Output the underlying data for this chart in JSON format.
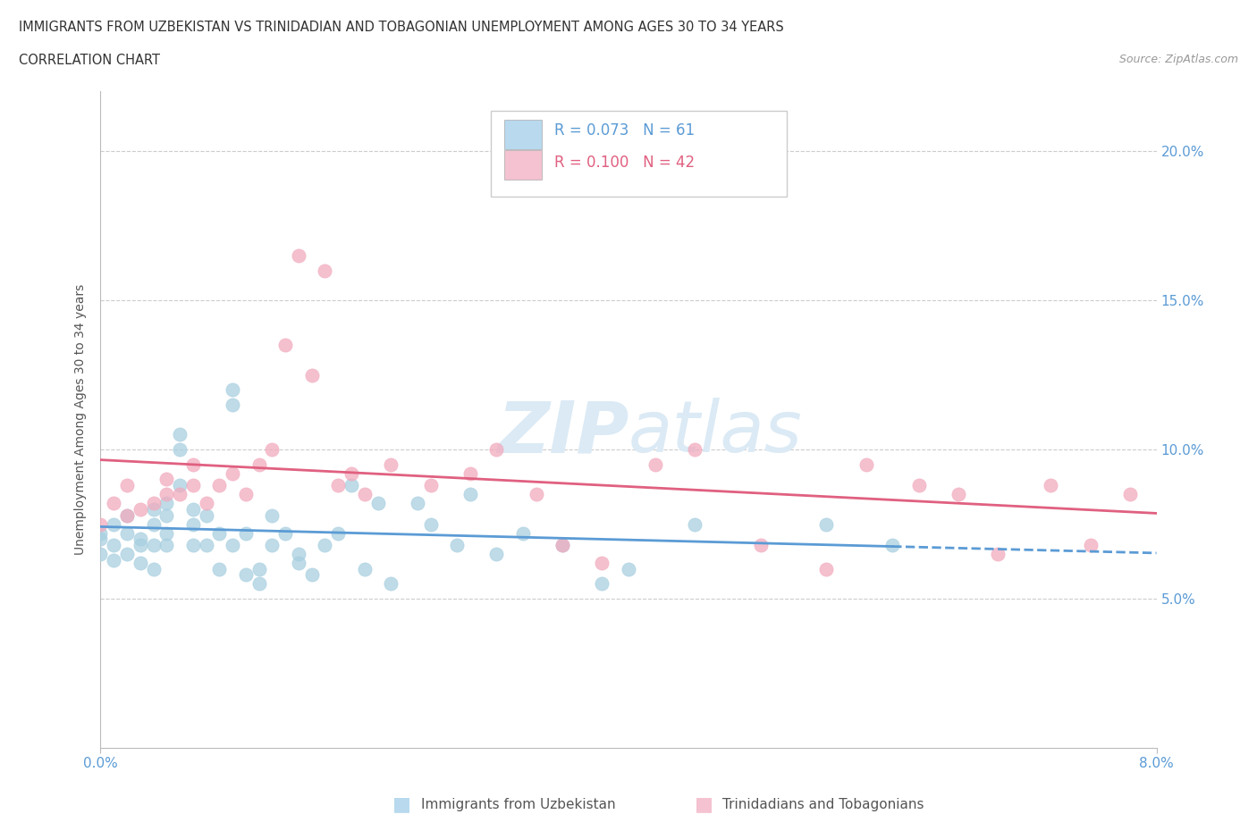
{
  "title_line1": "IMMIGRANTS FROM UZBEKISTAN VS TRINIDADIAN AND TOBAGONIAN UNEMPLOYMENT AMONG AGES 30 TO 34 YEARS",
  "title_line2": "CORRELATION CHART",
  "source": "Source: ZipAtlas.com",
  "ylabel": "Unemployment Among Ages 30 to 34 years",
  "xlim": [
    0.0,
    0.08
  ],
  "ylim": [
    0.0,
    0.22
  ],
  "yticks": [
    0.05,
    0.1,
    0.15,
    0.2
  ],
  "ytick_labels": [
    "5.0%",
    "10.0%",
    "15.0%",
    "20.0%"
  ],
  "xticks": [
    0.0,
    0.08
  ],
  "xtick_labels": [
    "0.0%",
    "8.0%"
  ],
  "color_uzbek": "#a8cfe0",
  "color_trini": "#f2abbe",
  "line_color_uzbek": "#5b9bd5",
  "line_color_trini": "#e06080",
  "R_uzbek": 0.073,
  "N_uzbek": 61,
  "R_trini": 0.1,
  "N_trini": 42,
  "uzbek_x": [
    0.0,
    0.0,
    0.0,
    0.001,
    0.001,
    0.001,
    0.002,
    0.002,
    0.002,
    0.003,
    0.003,
    0.003,
    0.004,
    0.004,
    0.004,
    0.004,
    0.005,
    0.005,
    0.005,
    0.005,
    0.006,
    0.006,
    0.006,
    0.007,
    0.007,
    0.007,
    0.008,
    0.008,
    0.009,
    0.009,
    0.01,
    0.01,
    0.01,
    0.011,
    0.011,
    0.012,
    0.012,
    0.013,
    0.013,
    0.014,
    0.015,
    0.015,
    0.016,
    0.017,
    0.018,
    0.019,
    0.02,
    0.021,
    0.022,
    0.024,
    0.025,
    0.027,
    0.028,
    0.03,
    0.032,
    0.035,
    0.038,
    0.04,
    0.045,
    0.055,
    0.06
  ],
  "uzbek_y": [
    0.07,
    0.072,
    0.065,
    0.068,
    0.075,
    0.063,
    0.072,
    0.078,
    0.065,
    0.07,
    0.068,
    0.062,
    0.075,
    0.08,
    0.068,
    0.06,
    0.078,
    0.082,
    0.072,
    0.068,
    0.1,
    0.105,
    0.088,
    0.08,
    0.075,
    0.068,
    0.078,
    0.068,
    0.072,
    0.06,
    0.115,
    0.12,
    0.068,
    0.072,
    0.058,
    0.06,
    0.055,
    0.078,
    0.068,
    0.072,
    0.065,
    0.062,
    0.058,
    0.068,
    0.072,
    0.088,
    0.06,
    0.082,
    0.055,
    0.082,
    0.075,
    0.068,
    0.085,
    0.065,
    0.072,
    0.068,
    0.055,
    0.06,
    0.075,
    0.075,
    0.068
  ],
  "trini_x": [
    0.0,
    0.001,
    0.002,
    0.002,
    0.003,
    0.004,
    0.005,
    0.005,
    0.006,
    0.007,
    0.007,
    0.008,
    0.009,
    0.01,
    0.011,
    0.012,
    0.013,
    0.014,
    0.015,
    0.016,
    0.017,
    0.018,
    0.019,
    0.02,
    0.022,
    0.025,
    0.028,
    0.03,
    0.033,
    0.035,
    0.038,
    0.042,
    0.045,
    0.05,
    0.055,
    0.058,
    0.062,
    0.065,
    0.068,
    0.072,
    0.075,
    0.078
  ],
  "trini_y": [
    0.075,
    0.082,
    0.078,
    0.088,
    0.08,
    0.082,
    0.085,
    0.09,
    0.085,
    0.088,
    0.095,
    0.082,
    0.088,
    0.092,
    0.085,
    0.095,
    0.1,
    0.135,
    0.165,
    0.125,
    0.16,
    0.088,
    0.092,
    0.085,
    0.095,
    0.088,
    0.092,
    0.1,
    0.085,
    0.068,
    0.062,
    0.095,
    0.1,
    0.068,
    0.06,
    0.095,
    0.088,
    0.085,
    0.065,
    0.088,
    0.068,
    0.085
  ],
  "background_color": "#ffffff",
  "grid_color": "#cccccc",
  "tick_color": "#5b9bd5",
  "watermark_color": "#dbeaf5",
  "legend_box_color_uzbek": "#b8d9ee",
  "legend_box_color_trini": "#f4c2d0"
}
